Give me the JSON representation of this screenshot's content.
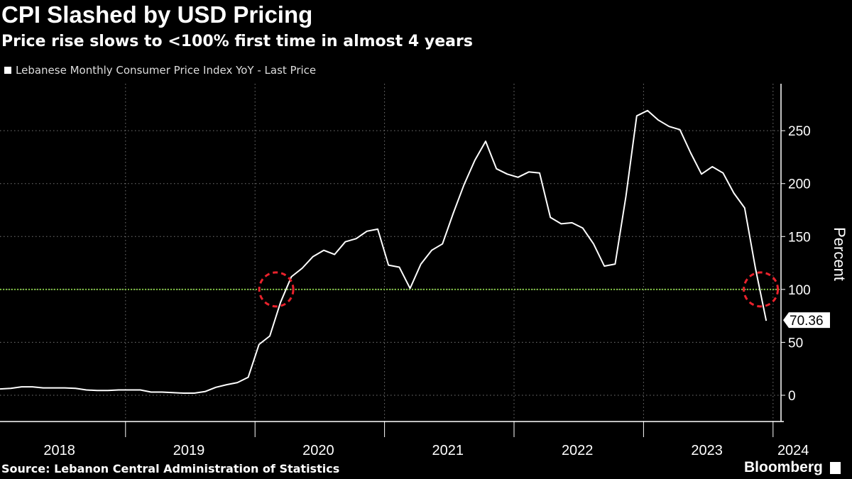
{
  "header": {
    "title": "CPI Slashed by USD Pricing",
    "subtitle": "Price rise slows to <100% first time in almost 4 years"
  },
  "legend": {
    "label": "Lebanese Monthly Consumer Price Index YoY - Last Price"
  },
  "footer": {
    "source": "Source: Lebanon Central Administration of Statistics",
    "brand": "Bloomberg"
  },
  "colors": {
    "background": "#000000",
    "series": "#ffffff",
    "reference_line": "#7fc241",
    "highlight_circle": "#e8222c",
    "grid": "#777777"
  },
  "chart_data": {
    "type": "line",
    "title": "CPI Slashed by USD Pricing",
    "ylabel": "Percent",
    "xlabel": "",
    "ylim": [
      -25,
      295
    ],
    "yticks": [
      0,
      50,
      100,
      150,
      200,
      250
    ],
    "x_year_labels": [
      "2018",
      "2019",
      "2020",
      "2021",
      "2022",
      "2023",
      "2024"
    ],
    "reference_line": {
      "value": 100,
      "style": "dotted"
    },
    "last_value_label": "70.36",
    "highlight_circles": [
      {
        "label": "2020-02",
        "value": 100
      },
      {
        "label": "2024-01",
        "value": 100
      }
    ],
    "series": [
      {
        "name": "Lebanese Monthly Consumer Price Index YoY - Last Price",
        "start": "2018-01",
        "values": [
          6,
          6.5,
          8,
          8,
          7,
          7,
          7,
          6.5,
          5,
          4.5,
          4.5,
          5,
          5,
          5,
          3,
          3,
          2.5,
          2,
          2,
          3.5,
          7.5,
          10,
          12,
          17,
          48,
          56,
          88,
          112,
          120,
          131,
          137,
          133,
          145,
          148,
          155,
          157,
          123,
          121,
          101,
          124,
          137,
          143,
          172,
          199,
          222,
          240,
          214,
          209,
          206,
          211,
          210,
          168,
          162,
          163,
          158,
          143,
          122,
          124,
          188,
          264,
          269,
          260,
          254,
          251,
          229,
          209,
          216,
          210,
          191,
          177,
          120,
          70.36
        ]
      }
    ]
  }
}
